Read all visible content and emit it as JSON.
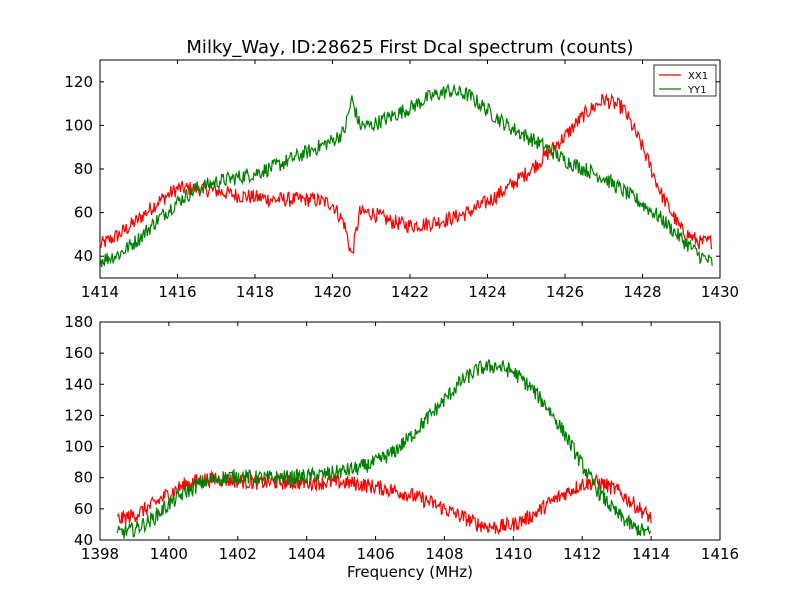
{
  "colors": {
    "xx1": "#ff0000",
    "yy1": "#008000",
    "axes": "#000000",
    "background": "#ffffff"
  },
  "chart_data": [
    {
      "type": "line",
      "title": "Milky_Way, ID:28625 First Dcal spectrum (counts)",
      "xlabel": "",
      "ylabel": "",
      "xlim": [
        1414,
        1430
      ],
      "ylim": [
        30,
        130
      ],
      "xticks": [
        "1414",
        "1416",
        "1418",
        "1420",
        "1422",
        "1424",
        "1426",
        "1428",
        "1430"
      ],
      "yticks": [
        "40",
        "60",
        "80",
        "100",
        "120"
      ],
      "legend_position": "top-right",
      "grid": false,
      "series": [
        {
          "name": "XX1",
          "x": [
            1414.0,
            1414.5,
            1415.0,
            1415.5,
            1416.0,
            1416.5,
            1417.0,
            1417.5,
            1418.0,
            1418.5,
            1419.0,
            1419.5,
            1420.0,
            1420.3,
            1420.5,
            1420.7,
            1421.0,
            1421.5,
            1422.0,
            1422.5,
            1423.0,
            1423.5,
            1424.0,
            1424.5,
            1425.0,
            1425.5,
            1426.0,
            1426.5,
            1427.0,
            1427.5,
            1428.0,
            1428.5,
            1429.0,
            1429.5,
            1429.8
          ],
          "values": [
            45,
            50,
            57,
            65,
            71,
            71,
            70,
            68,
            67,
            66,
            66,
            66,
            64,
            55,
            40,
            60,
            60,
            56,
            54,
            55,
            57,
            60,
            65,
            71,
            78,
            86,
            95,
            105,
            112,
            108,
            90,
            68,
            52,
            46,
            47
          ]
        },
        {
          "name": "YY1",
          "x": [
            1414.0,
            1414.5,
            1415.0,
            1415.5,
            1416.0,
            1416.5,
            1417.0,
            1417.5,
            1418.0,
            1418.5,
            1419.0,
            1419.5,
            1420.0,
            1420.3,
            1420.5,
            1420.7,
            1421.0,
            1421.5,
            1422.0,
            1422.5,
            1423.0,
            1423.5,
            1424.0,
            1424.5,
            1425.0,
            1425.5,
            1426.0,
            1426.5,
            1427.0,
            1427.5,
            1428.0,
            1428.5,
            1429.0,
            1429.5,
            1429.8
          ],
          "values": [
            38,
            41,
            48,
            57,
            65,
            71,
            74,
            76,
            78,
            81,
            85,
            89,
            93,
            97,
            112,
            100,
            100,
            104,
            108,
            113,
            116,
            114,
            107,
            100,
            95,
            90,
            84,
            80,
            76,
            70,
            64,
            57,
            48,
            40,
            37
          ]
        }
      ]
    },
    {
      "type": "line",
      "title": "",
      "xlabel": "Frequency (MHz)",
      "ylabel": "",
      "xlim": [
        1398,
        1416
      ],
      "ylim": [
        40,
        180
      ],
      "xticks": [
        "1398",
        "1400",
        "1402",
        "1404",
        "1406",
        "1408",
        "1410",
        "1412",
        "1414",
        "1416"
      ],
      "yticks": [
        "40",
        "60",
        "80",
        "100",
        "120",
        "140",
        "160",
        "180"
      ],
      "grid": false,
      "series": [
        {
          "name": "XX1",
          "x": [
            1398.5,
            1399.0,
            1399.5,
            1400.0,
            1400.5,
            1401.0,
            1401.5,
            1402.0,
            1402.5,
            1403.0,
            1403.5,
            1404.0,
            1404.5,
            1405.0,
            1405.5,
            1406.0,
            1406.5,
            1407.0,
            1407.5,
            1408.0,
            1408.5,
            1409.0,
            1409.5,
            1410.0,
            1410.5,
            1411.0,
            1411.5,
            1412.0,
            1412.5,
            1413.0,
            1413.5,
            1414.0
          ],
          "values": [
            53,
            56,
            62,
            70,
            76,
            79,
            79,
            78,
            77,
            77,
            77,
            77,
            77,
            77,
            76,
            74,
            72,
            69,
            65,
            60,
            55,
            50,
            48,
            50,
            55,
            63,
            70,
            76,
            77,
            72,
            63,
            54
          ]
        },
        {
          "name": "YY1",
          "x": [
            1398.5,
            1399.0,
            1399.5,
            1400.0,
            1400.5,
            1401.0,
            1401.5,
            1402.0,
            1402.5,
            1403.0,
            1403.5,
            1404.0,
            1404.5,
            1405.0,
            1405.5,
            1406.0,
            1406.5,
            1407.0,
            1407.5,
            1408.0,
            1408.5,
            1409.0,
            1409.5,
            1410.0,
            1410.5,
            1411.0,
            1411.5,
            1412.0,
            1412.5,
            1413.0,
            1413.5,
            1414.0
          ],
          "values": [
            44,
            47,
            53,
            63,
            71,
            77,
            80,
            81,
            80,
            80,
            80,
            81,
            82,
            84,
            86,
            90,
            96,
            106,
            118,
            130,
            142,
            150,
            152,
            148,
            138,
            125,
            108,
            88,
            70,
            57,
            48,
            44
          ]
        }
      ]
    }
  ]
}
